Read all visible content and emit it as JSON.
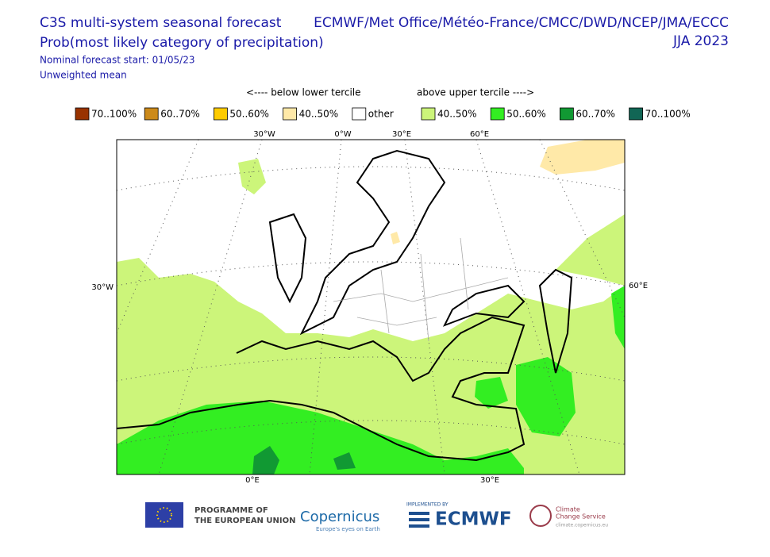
{
  "header": {
    "title": "C3S multi-system seasonal forecast",
    "variable": "Prob(most likely category of precipitation)",
    "start": "Nominal forecast start: 01/05/23",
    "method": "Unweighted mean",
    "systems": "ECMWF/Met Office/Météo-France/CMCC/DWD/NCEP/JMA/ECCC",
    "season": "JJA 2023"
  },
  "legend": {
    "below_label": "<---- below lower tercile",
    "above_label": "above upper tercile ---->",
    "items": [
      {
        "label": "70..100%",
        "color": "#993300"
      },
      {
        "label": "60..70%",
        "color": "#cc8a1a"
      },
      {
        "label": "50..60%",
        "color": "#ffcc00"
      },
      {
        "label": "40..50%",
        "color": "#ffe9a8"
      },
      {
        "label": "other",
        "color": "#ffffff"
      },
      {
        "label": "40..50%",
        "color": "#ccf57a"
      },
      {
        "label": "50..60%",
        "color": "#33ee22"
      },
      {
        "label": "60..70%",
        "color": "#119933"
      },
      {
        "label": "70..100%",
        "color": "#116655"
      }
    ]
  },
  "map": {
    "top_labels": [
      "30°W",
      "0°W",
      "30°E",
      "60°E"
    ],
    "left_label": "30°W",
    "right_label": "60°E",
    "bottom_labels": [
      "0°E",
      "30°E"
    ]
  },
  "footer": {
    "eu_line1": "PROGRAMME OF",
    "eu_line2": "THE EUROPEAN UNION",
    "copernicus": "Copernicus",
    "copernicus_tagline": "Europe's eyes on Earth",
    "implemented_by": "IMPLEMENTED BY",
    "ecmwf": "ECMWF",
    "c3s_line1": "Climate",
    "c3s_line2": "Change Service",
    "c3s_url": "climate.copernicus.eu"
  }
}
